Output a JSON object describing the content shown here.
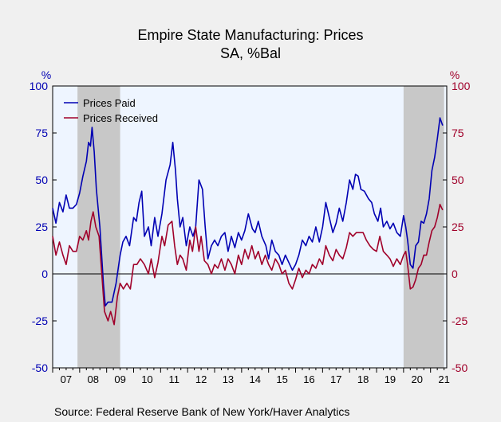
{
  "chart_data": {
    "type": "line",
    "title": "Empire State Manufacturing: Prices",
    "subtitle": "SA, %Bal",
    "left_unit": "%",
    "right_unit": "%",
    "ylim": [
      -50,
      100
    ],
    "yticks": [
      -50,
      -25,
      0,
      25,
      50,
      75,
      100
    ],
    "ytick_labels": [
      "-50",
      "-25",
      "0",
      "25",
      "50",
      "75",
      "100"
    ],
    "xlim": [
      2007.0,
      2021.6
    ],
    "year_labels": [
      "07",
      "08",
      "09",
      "10",
      "11",
      "12",
      "13",
      "14",
      "15",
      "16",
      "17",
      "18",
      "19",
      "20",
      "21"
    ],
    "recessions": [
      [
        2007.92,
        2009.5
      ],
      [
        2020.0,
        2021.5
      ]
    ],
    "legend_position": "top-left",
    "grid": false,
    "series": [
      {
        "name": "Prices Paid",
        "color": "#0000b3",
        "points": [
          [
            2007.0,
            35
          ],
          [
            2007.12,
            27
          ],
          [
            2007.25,
            38
          ],
          [
            2007.38,
            33
          ],
          [
            2007.5,
            42
          ],
          [
            2007.62,
            35
          ],
          [
            2007.75,
            35
          ],
          [
            2007.88,
            37
          ],
          [
            2008.0,
            43
          ],
          [
            2008.12,
            52
          ],
          [
            2008.25,
            60
          ],
          [
            2008.33,
            70
          ],
          [
            2008.4,
            68
          ],
          [
            2008.46,
            78
          ],
          [
            2008.54,
            65
          ],
          [
            2008.62,
            45
          ],
          [
            2008.75,
            25
          ],
          [
            2008.88,
            -5
          ],
          [
            2008.95,
            -17
          ],
          [
            2009.05,
            -15
          ],
          [
            2009.2,
            -15
          ],
          [
            2009.35,
            -5
          ],
          [
            2009.5,
            10
          ],
          [
            2009.6,
            17
          ],
          [
            2009.72,
            20
          ],
          [
            2009.85,
            15
          ],
          [
            2010.0,
            30
          ],
          [
            2010.1,
            28
          ],
          [
            2010.2,
            38
          ],
          [
            2010.3,
            44
          ],
          [
            2010.4,
            20
          ],
          [
            2010.55,
            25
          ],
          [
            2010.65,
            15
          ],
          [
            2010.78,
            30
          ],
          [
            2010.9,
            20
          ],
          [
            2011.05,
            32
          ],
          [
            2011.2,
            50
          ],
          [
            2011.35,
            58
          ],
          [
            2011.45,
            70
          ],
          [
            2011.55,
            55
          ],
          [
            2011.62,
            40
          ],
          [
            2011.72,
            25
          ],
          [
            2011.82,
            30
          ],
          [
            2011.95,
            15
          ],
          [
            2012.08,
            25
          ],
          [
            2012.2,
            20
          ],
          [
            2012.3,
            25
          ],
          [
            2012.42,
            50
          ],
          [
            2012.55,
            45
          ],
          [
            2012.65,
            25
          ],
          [
            2012.75,
            8
          ],
          [
            2012.88,
            15
          ],
          [
            2013.0,
            18
          ],
          [
            2013.12,
            15
          ],
          [
            2013.25,
            20
          ],
          [
            2013.38,
            22
          ],
          [
            2013.5,
            12
          ],
          [
            2013.62,
            20
          ],
          [
            2013.75,
            14
          ],
          [
            2013.88,
            22
          ],
          [
            2014.0,
            18
          ],
          [
            2014.12,
            23
          ],
          [
            2014.25,
            32
          ],
          [
            2014.4,
            24
          ],
          [
            2014.5,
            22
          ],
          [
            2014.62,
            28
          ],
          [
            2014.75,
            20
          ],
          [
            2014.9,
            15
          ],
          [
            2015.0,
            8
          ],
          [
            2015.12,
            18
          ],
          [
            2015.25,
            12
          ],
          [
            2015.38,
            10
          ],
          [
            2015.5,
            5
          ],
          [
            2015.62,
            10
          ],
          [
            2015.75,
            6
          ],
          [
            2015.88,
            2
          ],
          [
            2016.0,
            5
          ],
          [
            2016.12,
            10
          ],
          [
            2016.25,
            18
          ],
          [
            2016.38,
            15
          ],
          [
            2016.5,
            20
          ],
          [
            2016.62,
            17
          ],
          [
            2016.75,
            25
          ],
          [
            2016.88,
            17
          ],
          [
            2017.0,
            25
          ],
          [
            2017.12,
            38
          ],
          [
            2017.25,
            30
          ],
          [
            2017.38,
            22
          ],
          [
            2017.5,
            27
          ],
          [
            2017.62,
            35
          ],
          [
            2017.75,
            28
          ],
          [
            2017.88,
            38
          ],
          [
            2018.0,
            50
          ],
          [
            2018.12,
            45
          ],
          [
            2018.22,
            53
          ],
          [
            2018.32,
            52
          ],
          [
            2018.42,
            45
          ],
          [
            2018.55,
            44
          ],
          [
            2018.7,
            40
          ],
          [
            2018.82,
            38
          ],
          [
            2018.92,
            32
          ],
          [
            2019.05,
            28
          ],
          [
            2019.15,
            35
          ],
          [
            2019.25,
            25
          ],
          [
            2019.38,
            28
          ],
          [
            2019.5,
            24
          ],
          [
            2019.62,
            27
          ],
          [
            2019.75,
            22
          ],
          [
            2019.88,
            20
          ],
          [
            2020.0,
            31
          ],
          [
            2020.08,
            25
          ],
          [
            2020.15,
            18
          ],
          [
            2020.25,
            5
          ],
          [
            2020.35,
            3
          ],
          [
            2020.45,
            15
          ],
          [
            2020.55,
            17
          ],
          [
            2020.65,
            28
          ],
          [
            2020.75,
            27
          ],
          [
            2020.85,
            32
          ],
          [
            2020.95,
            40
          ],
          [
            2021.05,
            55
          ],
          [
            2021.15,
            62
          ],
          [
            2021.25,
            72
          ],
          [
            2021.35,
            83
          ],
          [
            2021.45,
            79
          ]
        ]
      },
      {
        "name": "Prices Received",
        "color": "#a0002a",
        "points": [
          [
            2007.0,
            20
          ],
          [
            2007.12,
            10
          ],
          [
            2007.25,
            17
          ],
          [
            2007.38,
            10
          ],
          [
            2007.5,
            5
          ],
          [
            2007.62,
            15
          ],
          [
            2007.75,
            12
          ],
          [
            2007.88,
            12
          ],
          [
            2008.0,
            20
          ],
          [
            2008.12,
            18
          ],
          [
            2008.25,
            23
          ],
          [
            2008.33,
            18
          ],
          [
            2008.42,
            28
          ],
          [
            2008.5,
            33
          ],
          [
            2008.6,
            25
          ],
          [
            2008.72,
            20
          ],
          [
            2008.82,
            0
          ],
          [
            2008.92,
            -20
          ],
          [
            2009.05,
            -25
          ],
          [
            2009.15,
            -20
          ],
          [
            2009.28,
            -27
          ],
          [
            2009.4,
            -12
          ],
          [
            2009.5,
            -5
          ],
          [
            2009.62,
            -8
          ],
          [
            2009.75,
            -5
          ],
          [
            2009.88,
            -8
          ],
          [
            2010.0,
            5
          ],
          [
            2010.12,
            5
          ],
          [
            2010.25,
            8
          ],
          [
            2010.4,
            5
          ],
          [
            2010.55,
            0
          ],
          [
            2010.65,
            8
          ],
          [
            2010.78,
            -2
          ],
          [
            2010.9,
            6
          ],
          [
            2011.05,
            20
          ],
          [
            2011.15,
            15
          ],
          [
            2011.28,
            26
          ],
          [
            2011.42,
            28
          ],
          [
            2011.52,
            15
          ],
          [
            2011.62,
            5
          ],
          [
            2011.72,
            10
          ],
          [
            2011.82,
            8
          ],
          [
            2011.95,
            2
          ],
          [
            2012.08,
            18
          ],
          [
            2012.18,
            12
          ],
          [
            2012.3,
            25
          ],
          [
            2012.42,
            12
          ],
          [
            2012.5,
            20
          ],
          [
            2012.62,
            7
          ],
          [
            2012.75,
            5
          ],
          [
            2012.88,
            0
          ],
          [
            2013.0,
            5
          ],
          [
            2013.12,
            3
          ],
          [
            2013.25,
            8
          ],
          [
            2013.38,
            2
          ],
          [
            2013.5,
            8
          ],
          [
            2013.62,
            5
          ],
          [
            2013.75,
            0
          ],
          [
            2013.88,
            10
          ],
          [
            2014.0,
            5
          ],
          [
            2014.12,
            13
          ],
          [
            2014.25,
            8
          ],
          [
            2014.38,
            15
          ],
          [
            2014.5,
            8
          ],
          [
            2014.62,
            12
          ],
          [
            2014.75,
            5
          ],
          [
            2014.88,
            10
          ],
          [
            2015.0,
            5
          ],
          [
            2015.12,
            2
          ],
          [
            2015.25,
            8
          ],
          [
            2015.38,
            5
          ],
          [
            2015.5,
            0
          ],
          [
            2015.62,
            2
          ],
          [
            2015.75,
            -5
          ],
          [
            2015.88,
            -8
          ],
          [
            2016.0,
            -3
          ],
          [
            2016.12,
            3
          ],
          [
            2016.25,
            -2
          ],
          [
            2016.38,
            2
          ],
          [
            2016.5,
            0
          ],
          [
            2016.62,
            5
          ],
          [
            2016.75,
            3
          ],
          [
            2016.88,
            8
          ],
          [
            2017.0,
            5
          ],
          [
            2017.12,
            15
          ],
          [
            2017.25,
            10
          ],
          [
            2017.38,
            7
          ],
          [
            2017.5,
            13
          ],
          [
            2017.62,
            10
          ],
          [
            2017.75,
            8
          ],
          [
            2017.88,
            14
          ],
          [
            2018.0,
            22
          ],
          [
            2018.12,
            20
          ],
          [
            2018.25,
            22
          ],
          [
            2018.38,
            22
          ],
          [
            2018.5,
            22
          ],
          [
            2018.62,
            18
          ],
          [
            2018.75,
            15
          ],
          [
            2018.88,
            13
          ],
          [
            2019.0,
            12
          ],
          [
            2019.12,
            20
          ],
          [
            2019.25,
            12
          ],
          [
            2019.38,
            10
          ],
          [
            2019.5,
            8
          ],
          [
            2019.62,
            4
          ],
          [
            2019.75,
            8
          ],
          [
            2019.88,
            5
          ],
          [
            2020.0,
            10
          ],
          [
            2020.08,
            12
          ],
          [
            2020.15,
            5
          ],
          [
            2020.25,
            -8
          ],
          [
            2020.35,
            -7
          ],
          [
            2020.45,
            -3
          ],
          [
            2020.55,
            3
          ],
          [
            2020.65,
            5
          ],
          [
            2020.75,
            10
          ],
          [
            2020.85,
            10
          ],
          [
            2020.95,
            17
          ],
          [
            2021.05,
            23
          ],
          [
            2021.15,
            25
          ],
          [
            2021.25,
            30
          ],
          [
            2021.35,
            37
          ],
          [
            2021.45,
            34
          ]
        ]
      }
    ]
  },
  "source": "Source:  Federal Reserve Bank of New York/Haver Analytics"
}
